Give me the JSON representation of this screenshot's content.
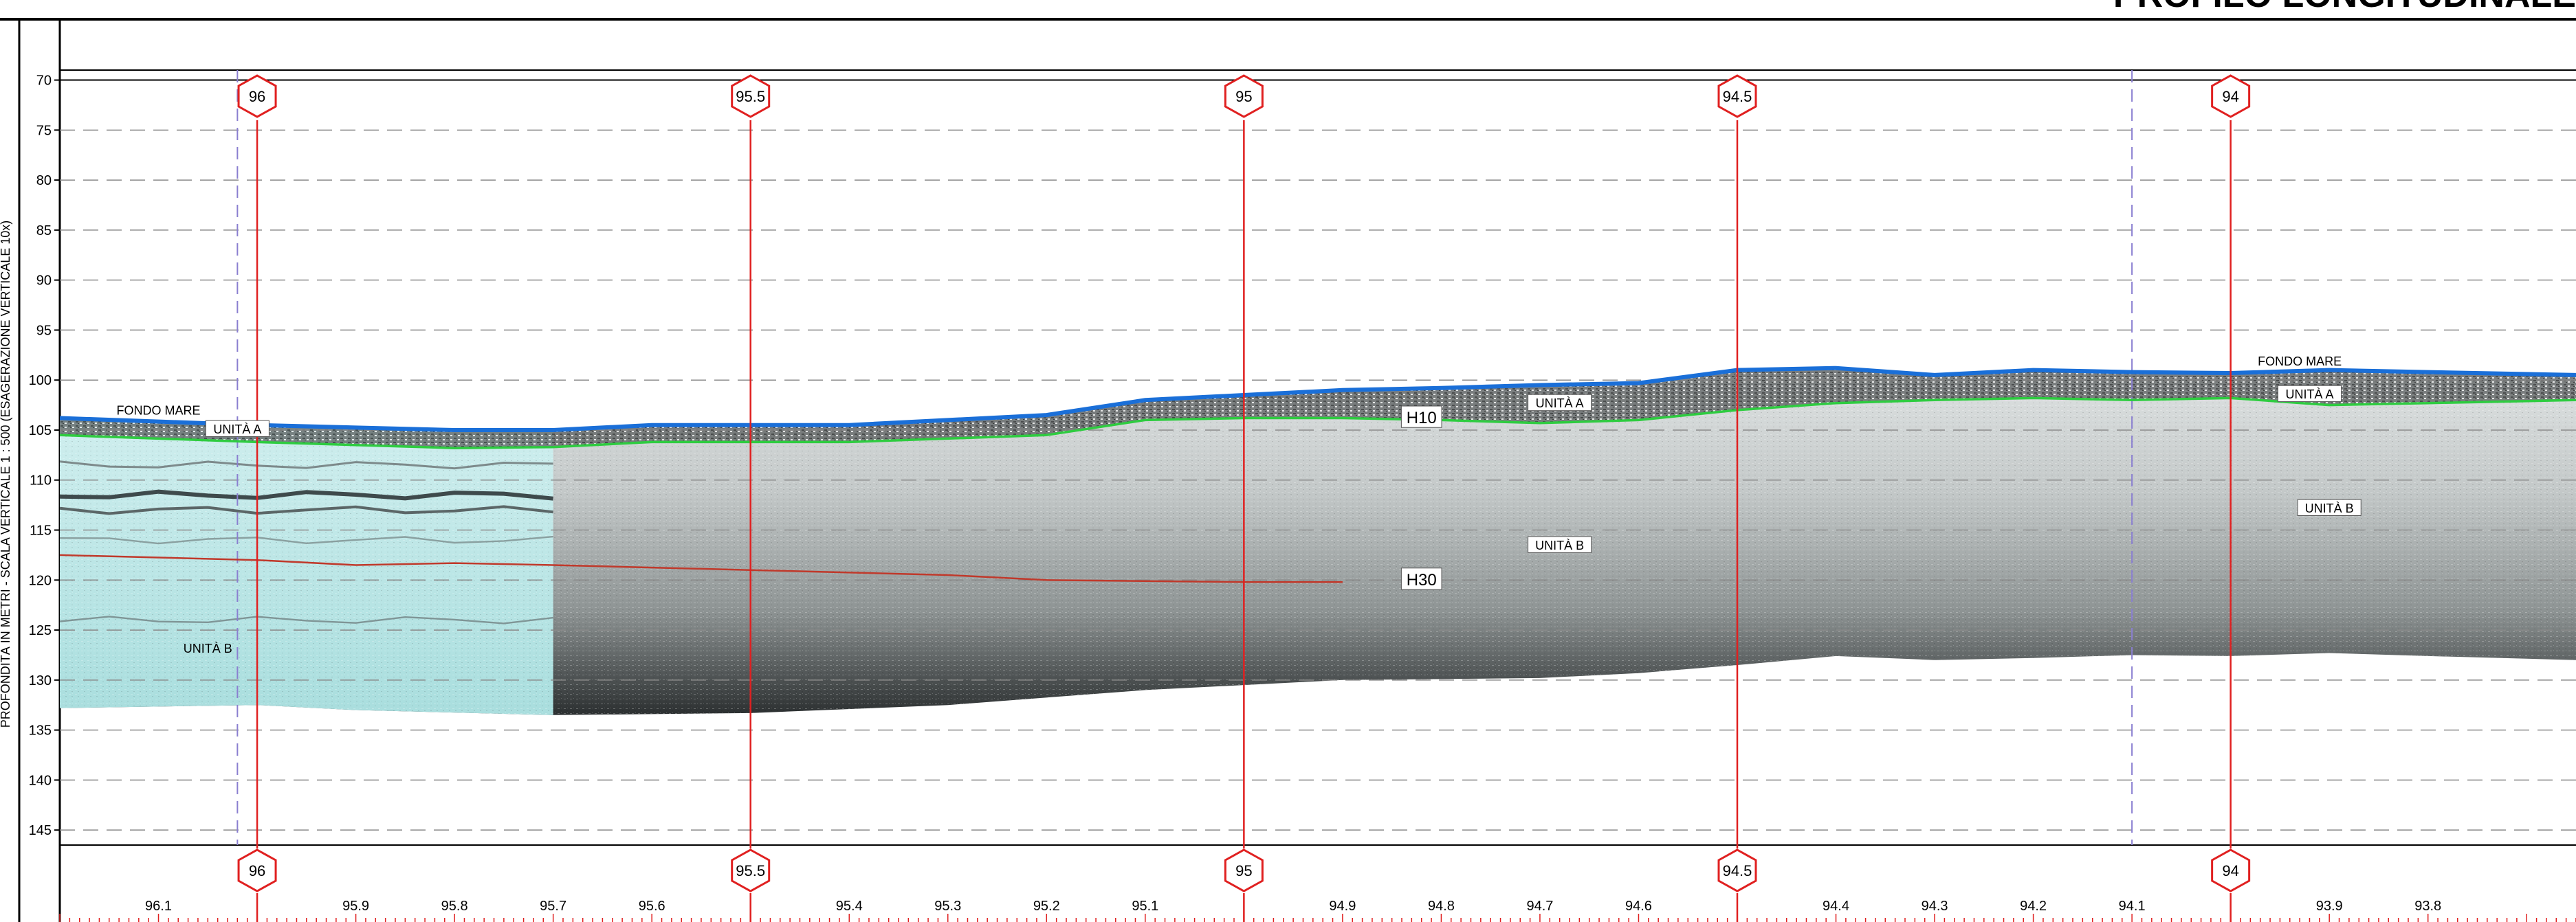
{
  "title": "PROFILO LONGITUDINALE",
  "y_axis": {
    "label": "PROFONDITÀ IN METRI - SCALA VERTICALE 1 : 500 (ESAGERAZIONE VERTICALE 10x)",
    "ticks": [
      "70",
      "75",
      "80",
      "85",
      "90",
      "95",
      "100",
      "105",
      "110",
      "115",
      "120",
      "125",
      "130",
      "135",
      "140",
      "145"
    ],
    "values": [
      70,
      75,
      80,
      85,
      90,
      95,
      100,
      105,
      110,
      115,
      120,
      125,
      130,
      135,
      140,
      145
    ],
    "range": [
      69,
      146.5
    ]
  },
  "x_axis": {
    "range": [
      96.2,
      93.65
    ],
    "ticks": [
      {
        "value": 96.1,
        "label": "96.1"
      },
      {
        "value": 95.9,
        "label": "95.9"
      },
      {
        "value": 95.8,
        "label": "95.8"
      },
      {
        "value": 95.7,
        "label": "95.7"
      },
      {
        "value": 95.6,
        "label": "95.6"
      },
      {
        "value": 95.4,
        "label": "95.4"
      },
      {
        "value": 95.3,
        "label": "95.3"
      },
      {
        "value": 95.2,
        "label": "95.2"
      },
      {
        "value": 95.1,
        "label": "95.1"
      },
      {
        "value": 94.9,
        "label": "94.9"
      },
      {
        "value": 94.8,
        "label": "94.8"
      },
      {
        "value": 94.7,
        "label": "94.7"
      },
      {
        "value": 94.6,
        "label": "94.6"
      },
      {
        "value": 94.4,
        "label": "94.4"
      },
      {
        "value": 94.3,
        "label": "94.3"
      },
      {
        "value": 94.2,
        "label": "94.2"
      },
      {
        "value": 94.1,
        "label": "94.1"
      },
      {
        "value": 93.9,
        "label": "93.9"
      },
      {
        "value": 93.8,
        "label": "93.8"
      }
    ]
  },
  "markers": [
    {
      "value": 96,
      "label": "96"
    },
    {
      "value": 95.5,
      "label": "95.5"
    },
    {
      "value": 95,
      "label": "95"
    },
    {
      "value": 94.5,
      "label": "94.5"
    },
    {
      "value": 94,
      "label": "94"
    }
  ],
  "blue_dashed_lines": [
    96.02,
    94.1
  ],
  "horizons": {
    "seabed": {
      "name": "FONDO MARE",
      "color": "#1a6fd8",
      "points": [
        [
          96.2,
          103.8
        ],
        [
          96.0,
          104.5
        ],
        [
          95.8,
          105.0
        ],
        [
          95.7,
          105.0
        ],
        [
          95.6,
          104.5
        ],
        [
          95.4,
          104.5
        ],
        [
          95.2,
          103.5
        ],
        [
          95.1,
          102.0
        ],
        [
          95.0,
          101.5
        ],
        [
          94.9,
          101.0
        ],
        [
          94.8,
          100.8
        ],
        [
          94.7,
          100.5
        ],
        [
          94.6,
          100.3
        ],
        [
          94.5,
          99.0
        ],
        [
          94.4,
          98.8
        ],
        [
          94.3,
          99.5
        ],
        [
          94.2,
          99.0
        ],
        [
          94.1,
          99.2
        ],
        [
          94.0,
          99.3
        ],
        [
          93.9,
          99.0
        ],
        [
          93.8,
          99.2
        ],
        [
          93.65,
          99.5
        ]
      ]
    },
    "h10": {
      "name": "H10",
      "color": "#2ecc40",
      "points": [
        [
          96.2,
          105.5
        ],
        [
          96.0,
          106.2
        ],
        [
          95.8,
          106.8
        ],
        [
          95.7,
          106.7
        ],
        [
          95.6,
          106.2
        ],
        [
          95.4,
          106.2
        ],
        [
          95.2,
          105.5
        ],
        [
          95.1,
          104.0
        ],
        [
          95.0,
          103.8
        ],
        [
          94.9,
          103.8
        ],
        [
          94.8,
          104.0
        ],
        [
          94.7,
          104.3
        ],
        [
          94.6,
          104.0
        ],
        [
          94.5,
          103.0
        ],
        [
          94.4,
          102.3
        ],
        [
          94.3,
          102.0
        ],
        [
          94.2,
          101.8
        ],
        [
          94.1,
          102.0
        ],
        [
          94.0,
          101.8
        ],
        [
          93.9,
          102.5
        ],
        [
          93.8,
          102.3
        ],
        [
          93.65,
          102.0
        ]
      ]
    },
    "h30": {
      "name": "H30",
      "color": "#c0392b",
      "points": [
        [
          96.2,
          117.5
        ],
        [
          96.0,
          118.0
        ],
        [
          95.9,
          118.5
        ],
        [
          95.8,
          118.3
        ],
        [
          95.7,
          118.5
        ],
        [
          95.5,
          119.0
        ],
        [
          95.3,
          119.5
        ],
        [
          95.2,
          120.0
        ],
        [
          95.0,
          120.2
        ],
        [
          94.9,
          120.2
        ]
      ]
    },
    "base": {
      "points": [
        [
          96.2,
          132.8
        ],
        [
          96.0,
          132.5
        ],
        [
          95.9,
          133.0
        ],
        [
          95.7,
          133.5
        ],
        [
          95.5,
          133.3
        ],
        [
          95.3,
          132.5
        ],
        [
          95.1,
          131.0
        ],
        [
          94.9,
          130.0
        ],
        [
          94.7,
          129.8
        ],
        [
          94.6,
          129.3
        ],
        [
          94.5,
          128.5
        ],
        [
          94.4,
          127.6
        ],
        [
          94.3,
          128.0
        ],
        [
          94.2,
          127.8
        ],
        [
          94.1,
          127.5
        ],
        [
          94.0,
          127.6
        ],
        [
          93.9,
          127.3
        ],
        [
          93.8,
          127.6
        ],
        [
          93.65,
          128.0
        ]
      ]
    }
  },
  "labels": [
    {
      "text": "FONDO MARE",
      "x": 96.1,
      "y": 103.2,
      "boxed": false
    },
    {
      "text": "UNITÀ A",
      "x": 96.02,
      "y": 105.1,
      "boxed": true
    },
    {
      "text": "UNITÀ B",
      "x": 96.05,
      "y": 127.0,
      "boxed": false
    },
    {
      "text": "H10",
      "x": 94.82,
      "y": 104.0,
      "boxed": true
    },
    {
      "text": "UNITÀ A",
      "x": 94.68,
      "y": 102.5,
      "boxed": true
    },
    {
      "text": "UNITÀ B",
      "x": 94.68,
      "y": 116.7,
      "boxed": true
    },
    {
      "text": "H30",
      "x": 94.82,
      "y": 120.2,
      "boxed": true
    },
    {
      "text": "FONDO MARE",
      "x": 93.93,
      "y": 98.3,
      "boxed": false
    },
    {
      "text": "UNITÀ A",
      "x": 93.92,
      "y": 101.6,
      "boxed": true
    },
    {
      "text": "UNITÀ B",
      "x": 93.9,
      "y": 113.0,
      "boxed": true
    }
  ],
  "colors": {
    "frame": "#000000",
    "marker": "#e02020",
    "grid": "#8a8a8a",
    "blue_dashed": "#8a7fd0",
    "cyan_section": "#bfeaea"
  }
}
